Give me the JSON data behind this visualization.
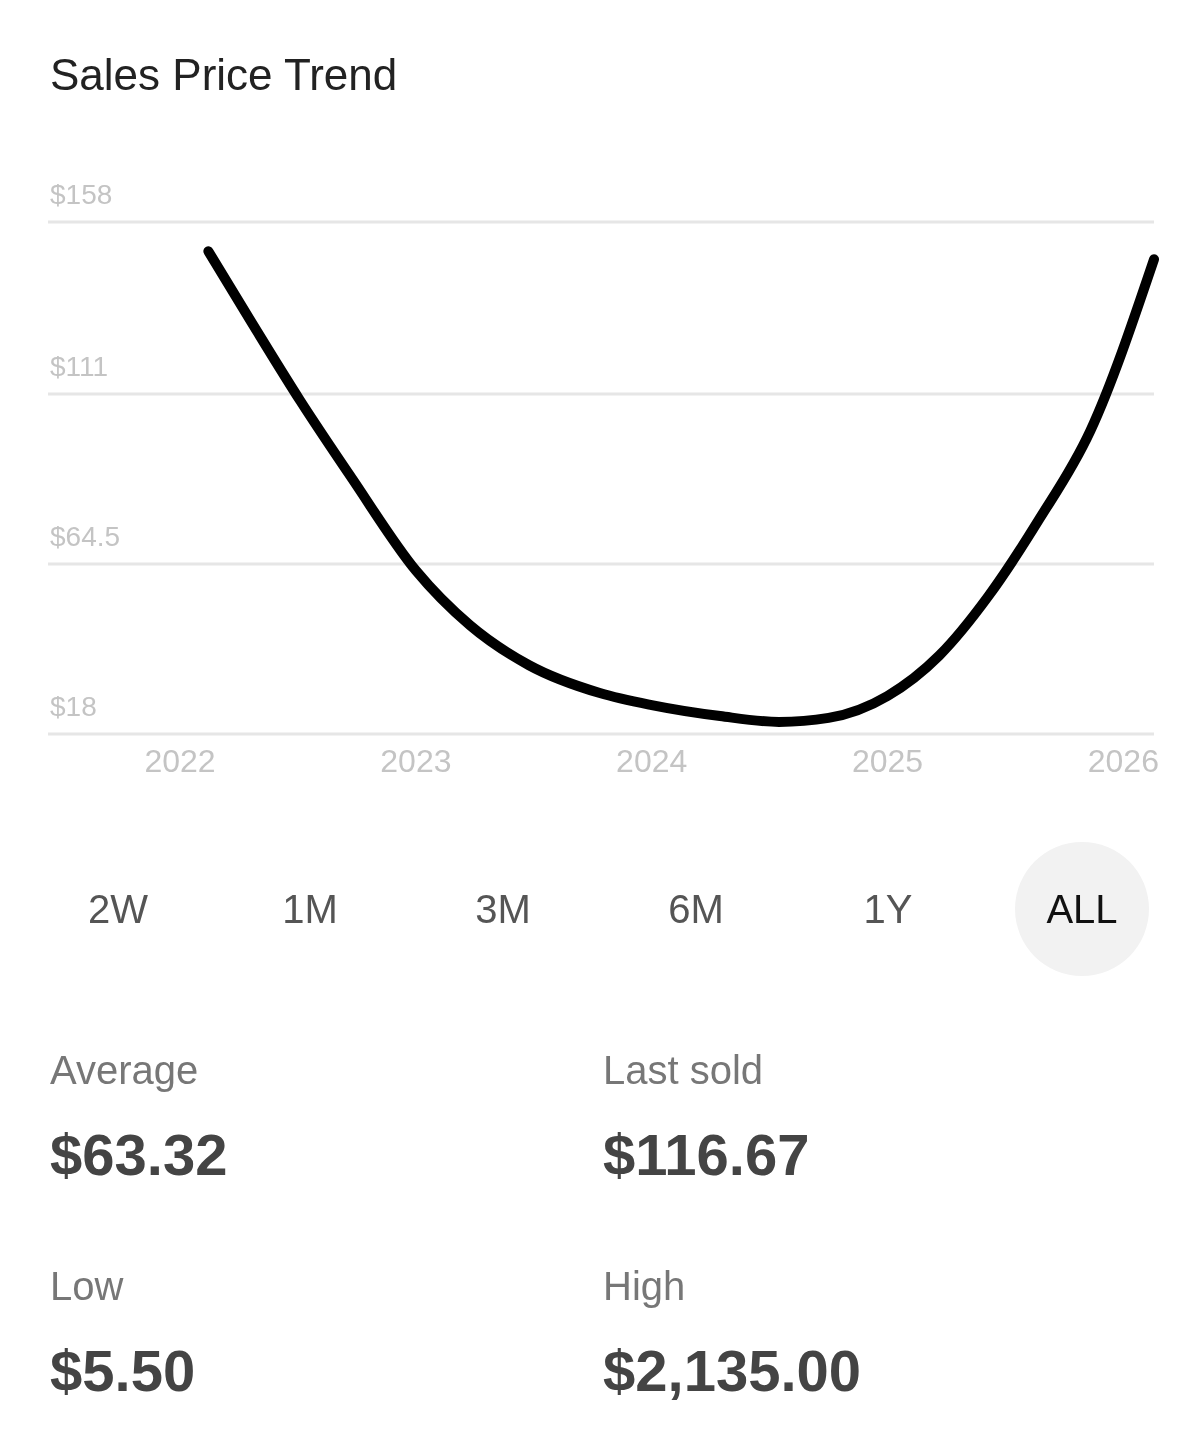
{
  "chart_data": {
    "type": "line",
    "title": "Sales Price Trend",
    "x": [
      2022.12,
      2022.3,
      2022.51,
      2022.73,
      2023.0,
      2023.23,
      2023.48,
      2023.78,
      2024.0,
      2024.29,
      2024.54,
      2024.75,
      2025.0,
      2025.22,
      2025.43,
      2025.64,
      2025.86,
      2026.13
    ],
    "series": [
      {
        "color": "#000000",
        "values": [
          150,
          130.9,
          109.1,
          87.8,
          62.7,
          47.7,
          36.8,
          29.2,
          25.9,
          22.9,
          21.3,
          22.4,
          28.4,
          39.5,
          55.9,
          76.4,
          100.9,
          147.8
        ]
      }
    ],
    "xlim": [
      2021.44,
      2026.13
    ],
    "xticks": [
      2022,
      2023,
      2024,
      2025,
      2026
    ],
    "ylim": [
      18,
      158
    ],
    "yticks": [
      {
        "value": 18,
        "label": "$18"
      },
      {
        "value": 64.5,
        "label": "$64.5"
      },
      {
        "value": 111,
        "label": "$111"
      },
      {
        "value": 158,
        "label": "$158"
      }
    ],
    "grid": "y",
    "marker": "none",
    "line_style": "solid",
    "annotations": [
      "2W",
      "1M",
      "3M",
      "6M",
      "1Y",
      "ALL",
      "Average",
      "$63.32",
      "Last sold",
      "$116.67",
      "Low",
      "$5.50",
      "High",
      "$2,135.00"
    ]
  }
}
